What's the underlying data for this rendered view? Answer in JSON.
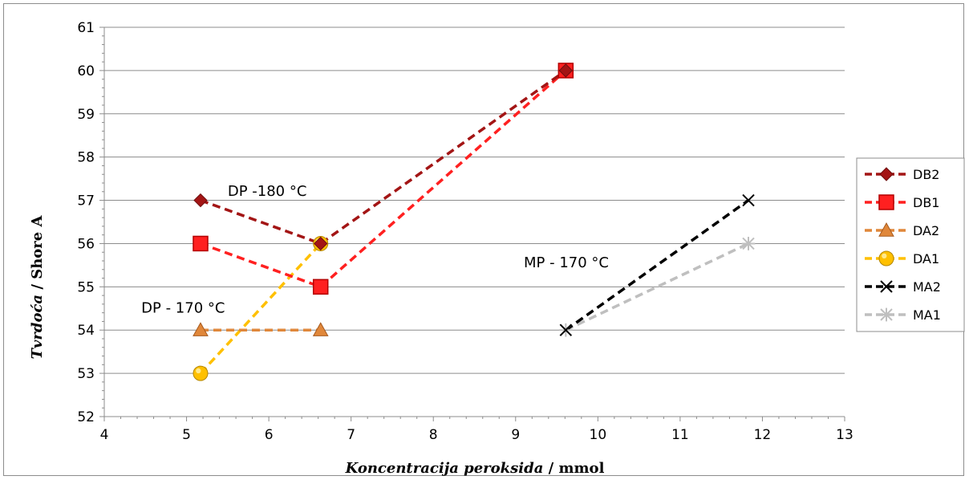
{
  "chart_data": {
    "type": "scatter",
    "xlabel_italic": "Koncentracija peroksida",
    "xlabel_unit": " / mmol",
    "ylabel_italic": "Tvrdoća",
    "ylabel_unit": " / Shore A",
    "xlim": [
      4,
      13
    ],
    "ylim": [
      52,
      61
    ],
    "xticks": [
      4,
      5,
      6,
      7,
      8,
      9,
      10,
      11,
      12,
      13
    ],
    "yticks": [
      52,
      53,
      54,
      55,
      56,
      57,
      58,
      59,
      60,
      61
    ],
    "grid": true,
    "legend_position": "right",
    "series": [
      {
        "name": "DB2",
        "marker": "diamond",
        "color": "#a31515",
        "x": [
          5.17,
          6.63,
          9.61
        ],
        "y": [
          57,
          56,
          60
        ]
      },
      {
        "name": "DB1",
        "marker": "square",
        "color": "#ff2020",
        "x": [
          5.17,
          6.63,
          9.61
        ],
        "y": [
          56,
          55,
          60
        ]
      },
      {
        "name": "DA2",
        "marker": "triangle",
        "color": "#e0873a",
        "x": [
          5.17,
          6.63
        ],
        "y": [
          54,
          54
        ]
      },
      {
        "name": "DA1",
        "marker": "circle",
        "color": "#ffc000",
        "x": [
          5.17,
          6.63
        ],
        "y": [
          53,
          56
        ]
      },
      {
        "name": "MA2",
        "marker": "x",
        "color": "#000000",
        "x": [
          9.61,
          11.83
        ],
        "y": [
          54,
          57
        ]
      },
      {
        "name": "MA1",
        "marker": "star",
        "color": "#bfbfbf",
        "x": [
          9.61,
          11.83
        ],
        "y": [
          54,
          56
        ]
      }
    ],
    "annotations": [
      {
        "text": "DP -180 °C",
        "x": 5.5,
        "y": 57.1
      },
      {
        "text": "DP - 170 °C",
        "x": 4.45,
        "y": 54.4
      },
      {
        "text": "MP - 170 °C",
        "x": 9.1,
        "y": 55.45
      }
    ]
  }
}
